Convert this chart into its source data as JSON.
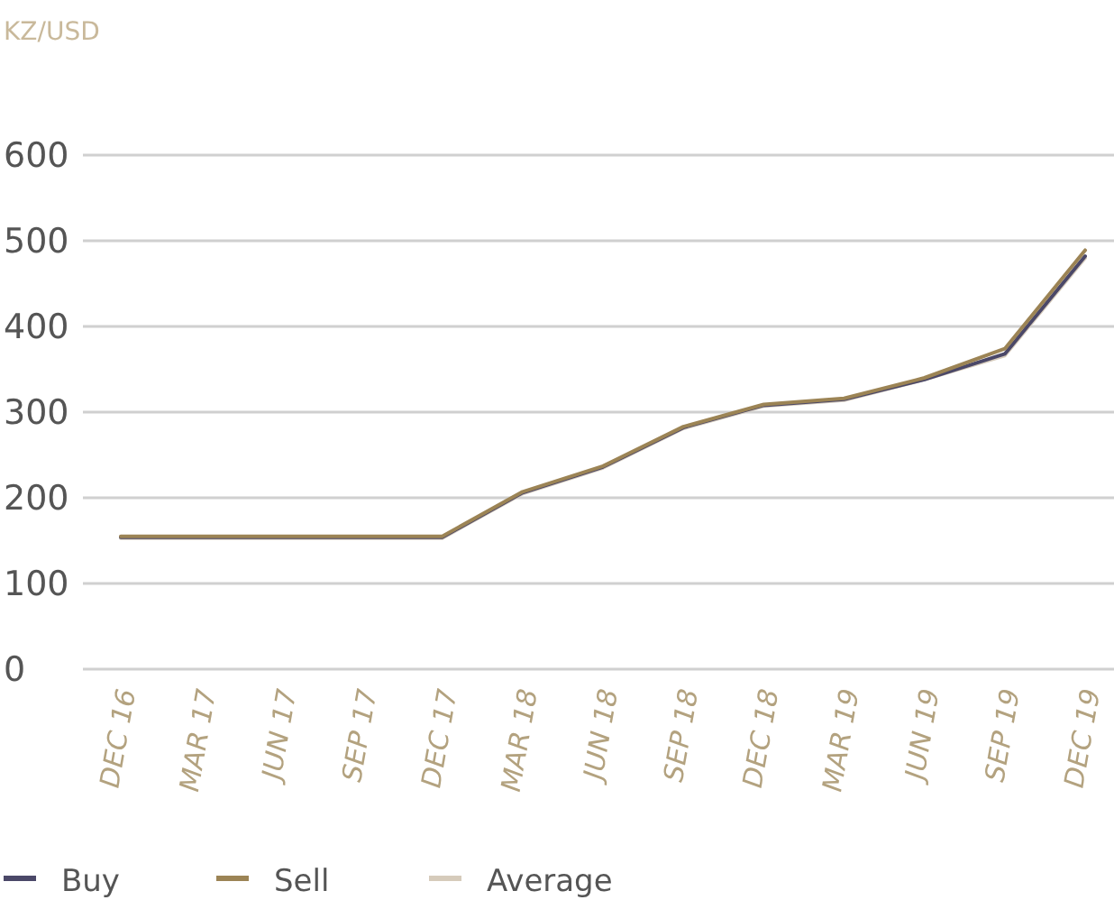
{
  "chart_data": {
    "type": "line",
    "ylabel": "KZ/USD",
    "categories": [
      "DEC 16",
      "MAR 17",
      "JUN 17",
      "SEP 17",
      "DEC 17",
      "MAR 18",
      "JUN 18",
      "SEP 18",
      "DEC 18",
      "MAR 19",
      "JUN 19",
      "SEP 19",
      "DEC 19"
    ],
    "series": [
      {
        "name": "Buy",
        "color": "#4b4868",
        "values": [
          154,
          154,
          154,
          154,
          154,
          206,
          236,
          282,
          308,
          315,
          338,
          368,
          482
        ]
      },
      {
        "name": "Sell",
        "color": "#9c8455",
        "values": [
          155,
          155,
          155,
          155,
          155,
          207,
          237,
          283,
          309,
          316,
          340,
          374,
          489
        ]
      },
      {
        "name": "Average",
        "color": "#d6cbbb",
        "values": [
          153,
          153,
          153,
          153,
          153,
          205,
          235,
          281,
          307,
          314,
          338,
          366,
          480
        ]
      }
    ],
    "ylim": [
      0,
      600
    ],
    "yticks": [
      0,
      100,
      200,
      300,
      400,
      500,
      600
    ],
    "grid": "y",
    "legend": "bottom",
    "marker": "none",
    "line_style": "solid"
  }
}
